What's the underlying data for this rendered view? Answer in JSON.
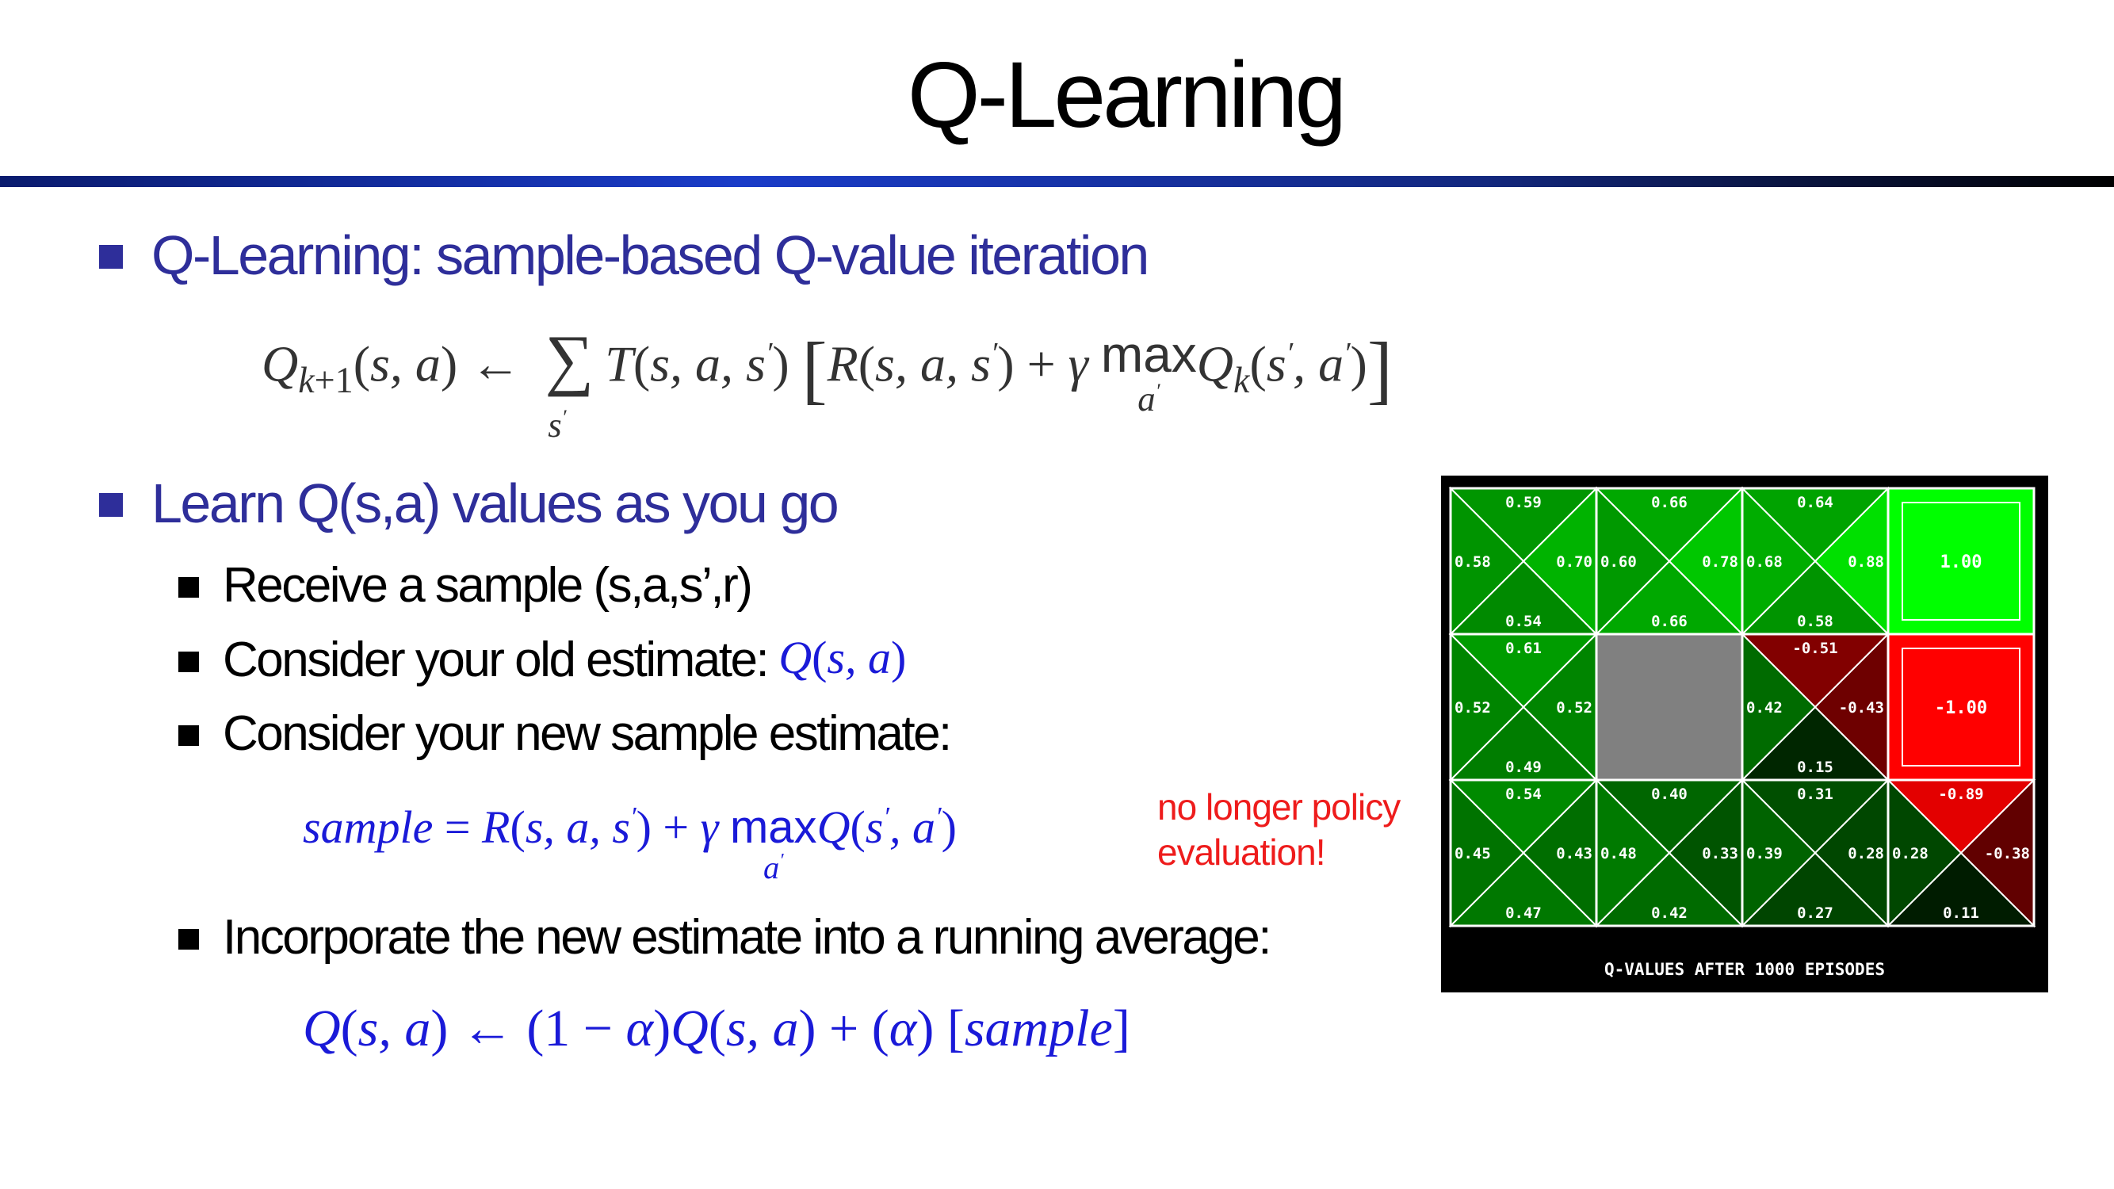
{
  "title": "Q-Learning",
  "bullets": {
    "b1": "Q-Learning: sample-based Q-value iteration",
    "b2": "Learn Q(s,a) values as you go",
    "sub1": "Receive a sample (s,a,s’,r)",
    "sub2": "Consider your old estimate:",
    "sub3": "Consider your new sample estimate:",
    "sub4": "Incorporate the new estimate into a running average:"
  },
  "equations": {
    "update_rule": "Q_{k+1}(s,a) ← Σ_{s'} T(s,a,s') [R(s,a,s') + γ max_{a'} Q_k(s',a')]",
    "old_estimate": "Q(s,a)",
    "sample": "sample = R(s,a,s') + γ max_{a'} Q(s',a')",
    "running_average": "Q(s,a) ← (1 − α)Q(s,a) + (α) [sample]"
  },
  "note": {
    "line1": "no longer policy",
    "line2": "evaluation!"
  },
  "gridworld": {
    "caption": "Q-VALUES AFTER 1000 EPISODES",
    "cells": [
      {
        "row": 0,
        "col": 0,
        "type": "q",
        "north": "0.59",
        "south": "0.54",
        "west": "0.58",
        "east": "0.70"
      },
      {
        "row": 0,
        "col": 1,
        "type": "q",
        "north": "0.66",
        "south": "0.66",
        "west": "0.60",
        "east": "0.78"
      },
      {
        "row": 0,
        "col": 2,
        "type": "q",
        "north": "0.64",
        "south": "0.58",
        "west": "0.68",
        "east": "0.88"
      },
      {
        "row": 0,
        "col": 3,
        "type": "terminal",
        "value": "1.00"
      },
      {
        "row": 1,
        "col": 0,
        "type": "q",
        "north": "0.61",
        "south": "0.49",
        "west": "0.52",
        "east": "0.52"
      },
      {
        "row": 1,
        "col": 1,
        "type": "wall"
      },
      {
        "row": 1,
        "col": 2,
        "type": "q",
        "north": "-0.51",
        "south": "0.15",
        "west": "0.42",
        "east": "-0.43"
      },
      {
        "row": 1,
        "col": 3,
        "type": "terminal",
        "value": "-1.00"
      },
      {
        "row": 2,
        "col": 0,
        "type": "q",
        "north": "0.54",
        "south": "0.47",
        "west": "0.45",
        "east": "0.43"
      },
      {
        "row": 2,
        "col": 1,
        "type": "q",
        "north": "0.40",
        "south": "0.42",
        "west": "0.48",
        "east": "0.33"
      },
      {
        "row": 2,
        "col": 2,
        "type": "q",
        "north": "0.31",
        "south": "0.27",
        "west": "0.39",
        "east": "0.28"
      },
      {
        "row": 2,
        "col": 3,
        "type": "q",
        "north": "-0.89",
        "south": "0.11",
        "west": "0.28",
        "east": "-0.38"
      }
    ]
  }
}
